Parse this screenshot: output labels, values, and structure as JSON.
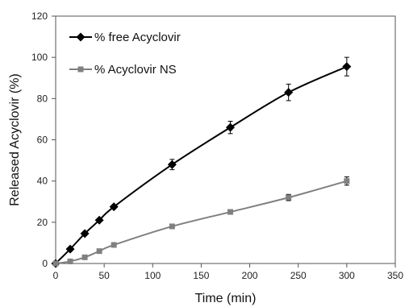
{
  "chart_data": {
    "type": "line",
    "title": "",
    "xlabel": "Time (min)",
    "ylabel": "Released  Acyclovir (%)",
    "xlim": [
      0,
      350
    ],
    "ylim": [
      0,
      120
    ],
    "x_ticks": [
      0,
      50,
      100,
      150,
      200,
      250,
      300,
      350
    ],
    "y_ticks": [
      0,
      20,
      40,
      60,
      80,
      100,
      120
    ],
    "x_tick_labels": [
      "0",
      "50",
      "100",
      "150",
      "200",
      "250",
      "300",
      "350"
    ],
    "y_tick_labels": [
      "0",
      "20",
      "40",
      "60",
      "80",
      "100",
      "120"
    ],
    "grid": false,
    "legend_position": "top-left",
    "series": [
      {
        "name": "% free Acyclovir",
        "color": "#000000",
        "marker": "diamond",
        "x": [
          0,
          15,
          30,
          45,
          60,
          120,
          180,
          240,
          300
        ],
        "y": [
          0,
          7,
          14.5,
          21,
          27.5,
          48,
          66,
          83,
          95.5
        ],
        "error": [
          0,
          0,
          0,
          0,
          0,
          2.5,
          3,
          4,
          4.5
        ]
      },
      {
        "name": "% Acyclovir NS",
        "color": "#808080",
        "marker": "square",
        "x": [
          0,
          15,
          30,
          45,
          60,
          120,
          180,
          240,
          300
        ],
        "y": [
          0,
          1,
          3,
          6,
          9,
          18,
          25,
          32,
          40
        ],
        "error": [
          0,
          0,
          0,
          0,
          0,
          0,
          0,
          1.5,
          2
        ]
      }
    ]
  }
}
